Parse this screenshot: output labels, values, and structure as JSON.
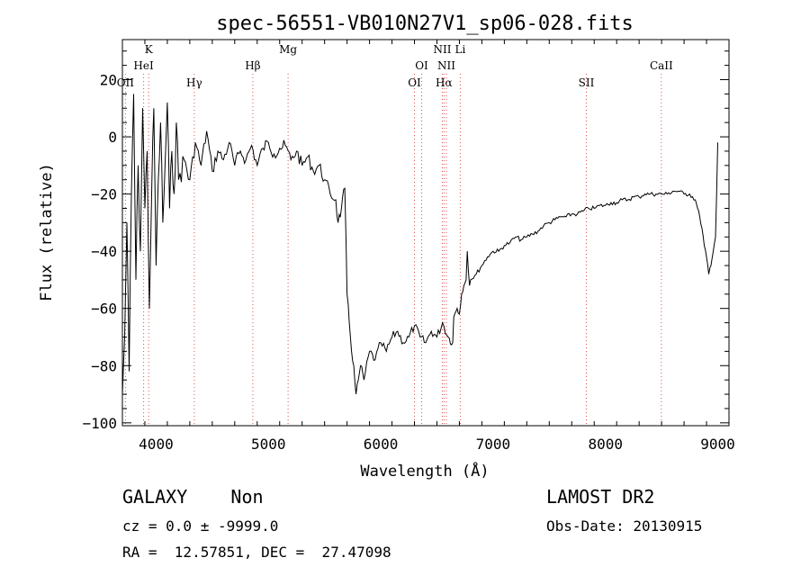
{
  "header": {
    "title": "spec-56551-VB010N27V1_sp06-028.fits",
    "xlabel": "Wavelength (Å)",
    "ylabel": "Flux (relative)"
  },
  "info": {
    "object_class": "GALAXY    Non",
    "survey": "LAMOST DR2",
    "cz": "cz = 0.0 ± -9999.0",
    "obs_date": "Obs-Date: 20130915",
    "radec": "RA =  12.57851, DEC =  27.47098"
  },
  "colors": {
    "line_markers": "#e05050",
    "spectrum": "#000000"
  },
  "chart_data": {
    "type": "line",
    "title": "spec-56551-VB010N27V1_sp06-028.fits",
    "xlabel": "Wavelength (Å)",
    "ylabel": "Flux (relative)",
    "xlim": [
      3700,
      9100
    ],
    "ylim": [
      -101,
      34
    ],
    "x_ticks": [
      4000,
      5000,
      6000,
      7000,
      8000,
      9000
    ],
    "y_ticks": [
      -100,
      -80,
      -60,
      -40,
      -20,
      0,
      20
    ],
    "grid": false,
    "lines": [
      {
        "label": "OII",
        "wave": 3727
      },
      {
        "label": "K",
        "wave": 3934
      },
      {
        "label": "HeI",
        "wave": 3889
      },
      {
        "label": "Hγ",
        "wave": 4340
      },
      {
        "label": "Hβ",
        "wave": 4861
      },
      {
        "label": "Mg",
        "wave": 5175
      },
      {
        "label": "OI",
        "wave": 6300
      },
      {
        "label": "OI",
        "wave": 6364
      },
      {
        "label": "NII",
        "wave": 6548
      },
      {
        "label": "Hα",
        "wave": 6563
      },
      {
        "label": "NII",
        "wave": 6584
      },
      {
        "label": "Li",
        "wave": 6708
      },
      {
        "label": "SII",
        "wave": 7830
      },
      {
        "label": "CaII",
        "wave": 8498
      }
    ],
    "series": [
      {
        "x": [
          3700,
          3720,
          3740,
          3760,
          3780,
          3800,
          3820,
          3840,
          3860,
          3880,
          3900,
          3920,
          3940,
          3960,
          3980,
          4000,
          4020,
          4040,
          4060,
          4080,
          4100,
          4120,
          4140,
          4160,
          4180,
          4200,
          4250,
          4300,
          4350,
          4400,
          4450,
          4500,
          4550,
          4600,
          4650,
          4700,
          4750,
          4800,
          4850,
          4900,
          4950,
          5000,
          5050,
          5100,
          5150,
          5200,
          5250,
          5300,
          5350,
          5400,
          5450,
          5500,
          5550,
          5600,
          5620,
          5650,
          5680,
          5700,
          5720,
          5740,
          5760,
          5780,
          5800,
          5820,
          5850,
          5900,
          5950,
          6000,
          6050,
          6100,
          6150,
          6200,
          6250,
          6300,
          6350,
          6400,
          6450,
          6500,
          6550,
          6600,
          6640,
          6650,
          6680,
          6700,
          6720,
          6740,
          6760,
          6770,
          6790,
          6800,
          6850,
          6900,
          6950,
          7000,
          7050,
          7100,
          7150,
          7200,
          7250,
          7300,
          7350,
          7400,
          7450,
          7500,
          7550,
          7600,
          7650,
          7700,
          7750,
          7800,
          7850,
          7900,
          7950,
          8000,
          8050,
          8100,
          8150,
          8200,
          8250,
          8300,
          8350,
          8400,
          8450,
          8500,
          8550,
          8600,
          8650,
          8700,
          8750,
          8800,
          8820,
          8840,
          8860,
          8880,
          8900,
          8920,
          8940,
          8960,
          8980,
          9000
        ],
        "y": [
          -90,
          -70,
          -30,
          -82,
          -20,
          15,
          -50,
          -10,
          -40,
          10,
          -25,
          -5,
          -60,
          -20,
          10,
          -45,
          -15,
          5,
          -30,
          -10,
          12,
          -25,
          -5,
          -20,
          5,
          -15,
          -8,
          -15,
          -2,
          -10,
          2,
          -12,
          -5,
          -8,
          -2,
          -10,
          -5,
          -8,
          -3,
          -10,
          -4,
          -2,
          -6,
          -4,
          -3,
          -8,
          -5,
          -10,
          -7,
          -12,
          -10,
          -15,
          -20,
          -22,
          -30,
          -25,
          -18,
          -55,
          -65,
          -75,
          -80,
          -90,
          -85,
          -80,
          -85,
          -75,
          -78,
          -72,
          -75,
          -70,
          -68,
          -72,
          -70,
          -66,
          -70,
          -72,
          -68,
          -70,
          -65,
          -70,
          -72,
          -63,
          -60,
          -62,
          -55,
          -52,
          -50,
          -40,
          -52,
          -50,
          -48,
          -45,
          -42,
          -40,
          -40,
          -38,
          -37,
          -35,
          -36,
          -35,
          -34,
          -33,
          -31,
          -30,
          -29,
          -28,
          -28,
          -27,
          -27,
          -26,
          -25,
          -25,
          -24,
          -24,
          -23,
          -23,
          -22,
          -22,
          -21,
          -21,
          -20,
          -20,
          -20,
          -20,
          -20,
          -19,
          -19,
          -20,
          -20,
          -22,
          -25,
          -28,
          -32,
          -38,
          -42,
          -48,
          -45,
          -40,
          -35,
          -2
        ]
      }
    ]
  }
}
